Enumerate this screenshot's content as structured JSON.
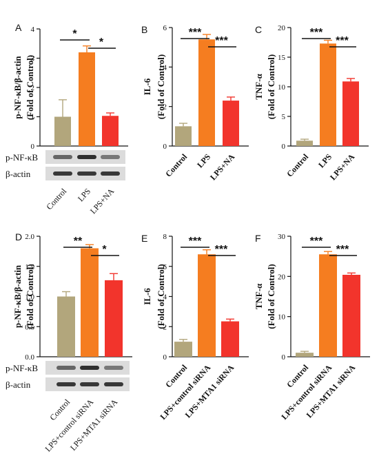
{
  "colors": {
    "control": "#b2a67c",
    "lps": "#f57d20",
    "treat": "#f2342c",
    "axis": "#111111",
    "blot_bg": "#dcdcdc",
    "band": "#262626"
  },
  "chart_data": [
    {
      "panel": "A",
      "type": "bar",
      "ylabel_lines": [
        "p-NF-κB/β-actin",
        "(Fold of Control)"
      ],
      "categories": [
        "Control",
        "LPS",
        "LPS+NA"
      ],
      "values": [
        1.0,
        3.2,
        1.03
      ],
      "errors": [
        0.58,
        0.22,
        0.1
      ],
      "ylim": [
        0,
        4
      ],
      "yticks": [
        "0",
        "1",
        "2",
        "3",
        "4"
      ],
      "significance": [
        "*",
        "*"
      ],
      "blot_labels": [
        "p-NF-κB",
        "β-actin"
      ]
    },
    {
      "panel": "B",
      "type": "bar",
      "ylabel_lines": [
        "IL-6",
        "(Fold of Control)"
      ],
      "categories": [
        "Control",
        "LPS",
        "LPS+NA"
      ],
      "values": [
        1.0,
        5.4,
        2.3
      ],
      "errors": [
        0.15,
        0.25,
        0.18
      ],
      "ylim": [
        0,
        6
      ],
      "yticks": [
        "0",
        "2",
        "4",
        "6"
      ],
      "significance": [
        "***",
        "***"
      ]
    },
    {
      "panel": "C",
      "type": "bar",
      "ylabel_lines": [
        "TNF-α",
        "(Fold of Control)"
      ],
      "categories": [
        "Control",
        "LPS",
        "LPS+NA"
      ],
      "values": [
        0.9,
        17.3,
        10.9
      ],
      "errors": [
        0.25,
        0.55,
        0.5
      ],
      "ylim": [
        0,
        20
      ],
      "yticks": [
        "0",
        "5",
        "10",
        "15",
        "20"
      ],
      "significance": [
        "***",
        "***"
      ]
    },
    {
      "panel": "D",
      "type": "bar",
      "ylabel_lines": [
        "p-NF-κB/β-actin",
        "(Fold of Control)"
      ],
      "categories": [
        "Control",
        "LPS+control siRNA",
        "LPS+MTA1 siRNA"
      ],
      "values": [
        1.0,
        1.8,
        1.27
      ],
      "errors": [
        0.08,
        0.06,
        0.11
      ],
      "ylim": [
        0,
        2.0
      ],
      "yticks": [
        "0.0",
        "0.5",
        "1.0",
        "1.5",
        "2.0"
      ],
      "significance": [
        "**",
        "*"
      ],
      "blot_labels": [
        "p-NF-κB",
        "β-actin"
      ]
    },
    {
      "panel": "E",
      "type": "bar",
      "ylabel_lines": [
        "IL-6",
        "(Fold of Control)"
      ],
      "categories": [
        "Control",
        "LPS+control siRNA",
        "LPS+MTA1 siRNA"
      ],
      "values": [
        1.0,
        6.8,
        2.35
      ],
      "errors": [
        0.15,
        0.3,
        0.15
      ],
      "ylim": [
        0,
        8
      ],
      "yticks": [
        "0",
        "2",
        "4",
        "6",
        "8"
      ],
      "significance": [
        "***",
        "***"
      ]
    },
    {
      "panel": "F",
      "type": "bar",
      "ylabel_lines": [
        "TNF-α",
        "(Fold of Control)"
      ],
      "categories": [
        "Control",
        "LPS+control siRNA",
        "LPS+MTA1 siRNA"
      ],
      "values": [
        1.0,
        25.5,
        20.4
      ],
      "errors": [
        0.35,
        0.7,
        0.45
      ],
      "ylim": [
        0,
        30
      ],
      "yticks": [
        "0",
        "10",
        "20",
        "30"
      ],
      "significance": [
        "***",
        "***"
      ]
    }
  ]
}
